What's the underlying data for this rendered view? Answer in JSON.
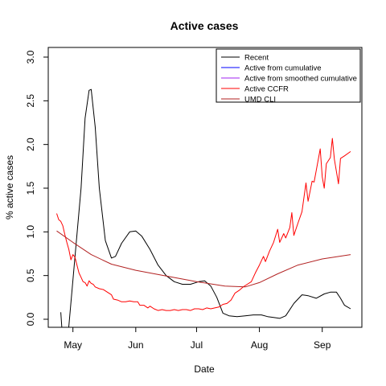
{
  "chart_data": {
    "type": "line",
    "title": "Active cases",
    "xlabel": "Date",
    "ylabel": "% active cases",
    "x_ticks": [
      "May",
      "Jun",
      "Jul",
      "Aug",
      "Sep"
    ],
    "y_ticks": [
      "0.0",
      "0.5",
      "1.0",
      "1.5",
      "2.0",
      "2.5",
      "3.0"
    ],
    "ylim": [
      0,
      3.0
    ],
    "xlim": [
      "2020-04-22",
      "2020-09-15"
    ],
    "grid": false,
    "legend_position": "top-right",
    "series": [
      {
        "name": "Recent",
        "color": "#000000",
        "points": [
          [
            "2020-04-25",
            0.08
          ],
          [
            "2020-04-27",
            -0.6
          ],
          [
            "2020-05-05",
            1.5
          ],
          [
            "2020-05-07",
            2.3
          ],
          [
            "2020-05-09",
            2.62
          ],
          [
            "2020-05-10",
            2.63
          ],
          [
            "2020-05-12",
            2.2
          ],
          [
            "2020-05-14",
            1.5
          ],
          [
            "2020-05-17",
            0.9
          ],
          [
            "2020-05-20",
            0.7
          ],
          [
            "2020-05-22",
            0.72
          ],
          [
            "2020-05-25",
            0.87
          ],
          [
            "2020-05-29",
            1.0
          ],
          [
            "2020-06-01",
            1.01
          ],
          [
            "2020-06-04",
            0.95
          ],
          [
            "2020-06-08",
            0.8
          ],
          [
            "2020-06-12",
            0.62
          ],
          [
            "2020-06-16",
            0.5
          ],
          [
            "2020-06-20",
            0.43
          ],
          [
            "2020-06-24",
            0.4
          ],
          [
            "2020-06-28",
            0.4
          ],
          [
            "2020-07-02",
            0.43
          ],
          [
            "2020-07-05",
            0.44
          ],
          [
            "2020-07-08",
            0.38
          ],
          [
            "2020-07-11",
            0.25
          ],
          [
            "2020-07-14",
            0.07
          ],
          [
            "2020-07-17",
            0.04
          ],
          [
            "2020-07-21",
            0.03
          ],
          [
            "2020-07-25",
            0.04
          ],
          [
            "2020-07-29",
            0.05
          ],
          [
            "2020-08-02",
            0.05
          ],
          [
            "2020-08-05",
            0.03
          ],
          [
            "2020-08-08",
            0.02
          ],
          [
            "2020-08-11",
            0.01
          ],
          [
            "2020-08-14",
            0.04
          ],
          [
            "2020-08-18",
            0.18
          ],
          [
            "2020-08-22",
            0.28
          ],
          [
            "2020-08-25",
            0.27
          ],
          [
            "2020-08-29",
            0.24
          ],
          [
            "2020-09-02",
            0.29
          ],
          [
            "2020-09-05",
            0.31
          ],
          [
            "2020-09-08",
            0.31
          ],
          [
            "2020-09-10",
            0.24
          ],
          [
            "2020-09-12",
            0.16
          ],
          [
            "2020-09-15",
            0.12
          ]
        ]
      },
      {
        "name": "Active from cumulative",
        "color": "#0000ff",
        "points": []
      },
      {
        "name": "Active from smoothed cumulative",
        "color": "#a020f0",
        "points": []
      },
      {
        "name": "Active CCFR",
        "color": "#ff0000",
        "points": [
          [
            "2020-04-23",
            1.21
          ],
          [
            "2020-04-24",
            1.14
          ],
          [
            "2020-04-25",
            1.12
          ],
          [
            "2020-04-26",
            1.07
          ],
          [
            "2020-04-27",
            0.97
          ],
          [
            "2020-04-28",
            0.88
          ],
          [
            "2020-04-29",
            0.8
          ],
          [
            "2020-04-30",
            0.68
          ],
          [
            "2020-05-01",
            0.74
          ],
          [
            "2020-05-02",
            0.71
          ],
          [
            "2020-05-03",
            0.62
          ],
          [
            "2020-05-04",
            0.53
          ],
          [
            "2020-05-05",
            0.48
          ],
          [
            "2020-05-06",
            0.43
          ],
          [
            "2020-05-07",
            0.42
          ],
          [
            "2020-05-08",
            0.38
          ],
          [
            "2020-05-09",
            0.44
          ],
          [
            "2020-05-10",
            0.41
          ],
          [
            "2020-05-11",
            0.4
          ],
          [
            "2020-05-12",
            0.37
          ],
          [
            "2020-05-14",
            0.35
          ],
          [
            "2020-05-16",
            0.34
          ],
          [
            "2020-05-18",
            0.31
          ],
          [
            "2020-05-20",
            0.28
          ],
          [
            "2020-05-21",
            0.23
          ],
          [
            "2020-05-23",
            0.22
          ],
          [
            "2020-05-25",
            0.2
          ],
          [
            "2020-05-27",
            0.2
          ],
          [
            "2020-05-29",
            0.21
          ],
          [
            "2020-05-31",
            0.2
          ],
          [
            "2020-06-02",
            0.2
          ],
          [
            "2020-06-03",
            0.16
          ],
          [
            "2020-06-05",
            0.16
          ],
          [
            "2020-06-07",
            0.13
          ],
          [
            "2020-06-08",
            0.15
          ],
          [
            "2020-06-10",
            0.12
          ],
          [
            "2020-06-12",
            0.1
          ],
          [
            "2020-06-14",
            0.11
          ],
          [
            "2020-06-16",
            0.1
          ],
          [
            "2020-06-18",
            0.1
          ],
          [
            "2020-06-20",
            0.11
          ],
          [
            "2020-06-22",
            0.1
          ],
          [
            "2020-06-24",
            0.11
          ],
          [
            "2020-06-26",
            0.11
          ],
          [
            "2020-06-28",
            0.1
          ],
          [
            "2020-06-30",
            0.12
          ],
          [
            "2020-07-02",
            0.12
          ],
          [
            "2020-07-04",
            0.11
          ],
          [
            "2020-07-06",
            0.13
          ],
          [
            "2020-07-08",
            0.12
          ],
          [
            "2020-07-10",
            0.13
          ],
          [
            "2020-07-12",
            0.14
          ],
          [
            "2020-07-14",
            0.17
          ],
          [
            "2020-07-16",
            0.18
          ],
          [
            "2020-07-18",
            0.22
          ],
          [
            "2020-07-20",
            0.3
          ],
          [
            "2020-07-22",
            0.33
          ],
          [
            "2020-07-24",
            0.37
          ],
          [
            "2020-07-26",
            0.4
          ],
          [
            "2020-07-28",
            0.43
          ],
          [
            "2020-07-30",
            0.53
          ],
          [
            "2020-08-01",
            0.62
          ],
          [
            "2020-08-03",
            0.72
          ],
          [
            "2020-08-04",
            0.66
          ],
          [
            "2020-08-06",
            0.78
          ],
          [
            "2020-08-08",
            0.88
          ],
          [
            "2020-08-10",
            1.03
          ],
          [
            "2020-08-11",
            0.88
          ],
          [
            "2020-08-13",
            0.98
          ],
          [
            "2020-08-14",
            0.93
          ],
          [
            "2020-08-16",
            1.05
          ],
          [
            "2020-08-17",
            1.22
          ],
          [
            "2020-08-18",
            0.96
          ],
          [
            "2020-08-20",
            1.1
          ],
          [
            "2020-08-22",
            1.23
          ],
          [
            "2020-08-24",
            1.56
          ],
          [
            "2020-08-25",
            1.35
          ],
          [
            "2020-08-27",
            1.58
          ],
          [
            "2020-08-28",
            1.57
          ],
          [
            "2020-08-29",
            1.7
          ],
          [
            "2020-08-31",
            1.95
          ],
          [
            "2020-09-01",
            1.63
          ],
          [
            "2020-09-02",
            1.5
          ],
          [
            "2020-09-03",
            1.78
          ],
          [
            "2020-09-05",
            1.85
          ],
          [
            "2020-09-06",
            2.07
          ],
          [
            "2020-09-07",
            1.83
          ],
          [
            "2020-09-09",
            1.55
          ],
          [
            "2020-09-10",
            1.84
          ],
          [
            "2020-09-12",
            1.87
          ],
          [
            "2020-09-15",
            1.92
          ]
        ]
      },
      {
        "name": "UMD CLI",
        "color": "#b22222",
        "points": [
          [
            "2020-04-23",
            1.01
          ],
          [
            "2020-05-01",
            0.88
          ],
          [
            "2020-05-10",
            0.74
          ],
          [
            "2020-05-20",
            0.63
          ],
          [
            "2020-06-01",
            0.56
          ],
          [
            "2020-06-15",
            0.5
          ],
          [
            "2020-07-01",
            0.43
          ],
          [
            "2020-07-15",
            0.38
          ],
          [
            "2020-07-25",
            0.37
          ],
          [
            "2020-08-01",
            0.42
          ],
          [
            "2020-08-10",
            0.52
          ],
          [
            "2020-08-20",
            0.62
          ],
          [
            "2020-09-01",
            0.69
          ],
          [
            "2020-09-15",
            0.74
          ]
        ]
      }
    ]
  }
}
